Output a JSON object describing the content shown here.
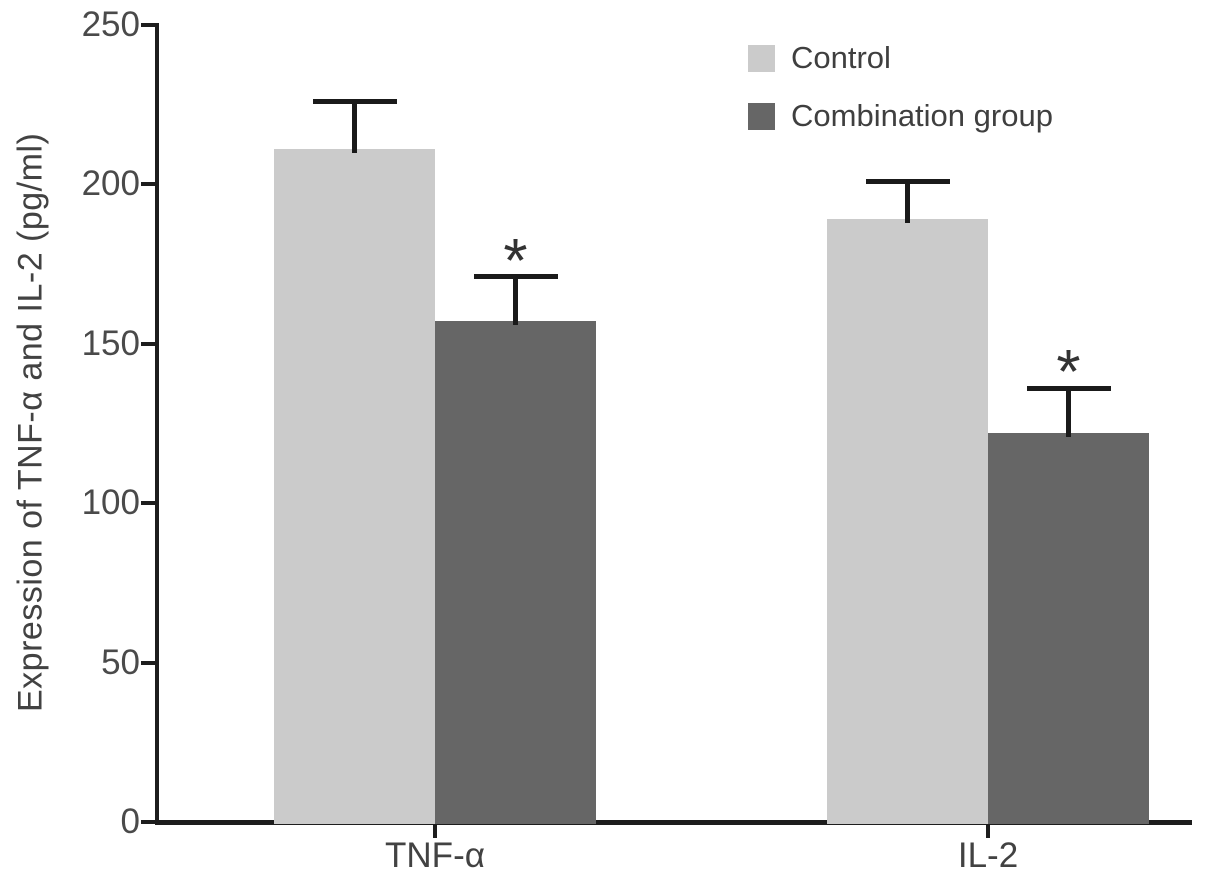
{
  "chart_data": {
    "type": "bar",
    "title": "",
    "xlabel": "",
    "ylabel": "Expression of TNF-α and IL-2 (pg/ml)",
    "categories": [
      "TNF-α",
      "IL-2"
    ],
    "series": [
      {
        "name": "Control",
        "color": "#cbcbcb",
        "values": [
          211,
          189
        ],
        "errors": [
          15,
          12
        ],
        "significance": [
          "",
          ""
        ]
      },
      {
        "name": "Combination group",
        "color": "#666666",
        "values": [
          157,
          122
        ],
        "errors": [
          14,
          14
        ],
        "significance": [
          "*",
          "*"
        ]
      }
    ],
    "ylim": [
      0,
      250
    ],
    "yticks": [
      0,
      50,
      100,
      150,
      200,
      250
    ],
    "legend_position": "top-right",
    "grid": false,
    "error_bars": "upper-only",
    "significance_marker": "*"
  }
}
